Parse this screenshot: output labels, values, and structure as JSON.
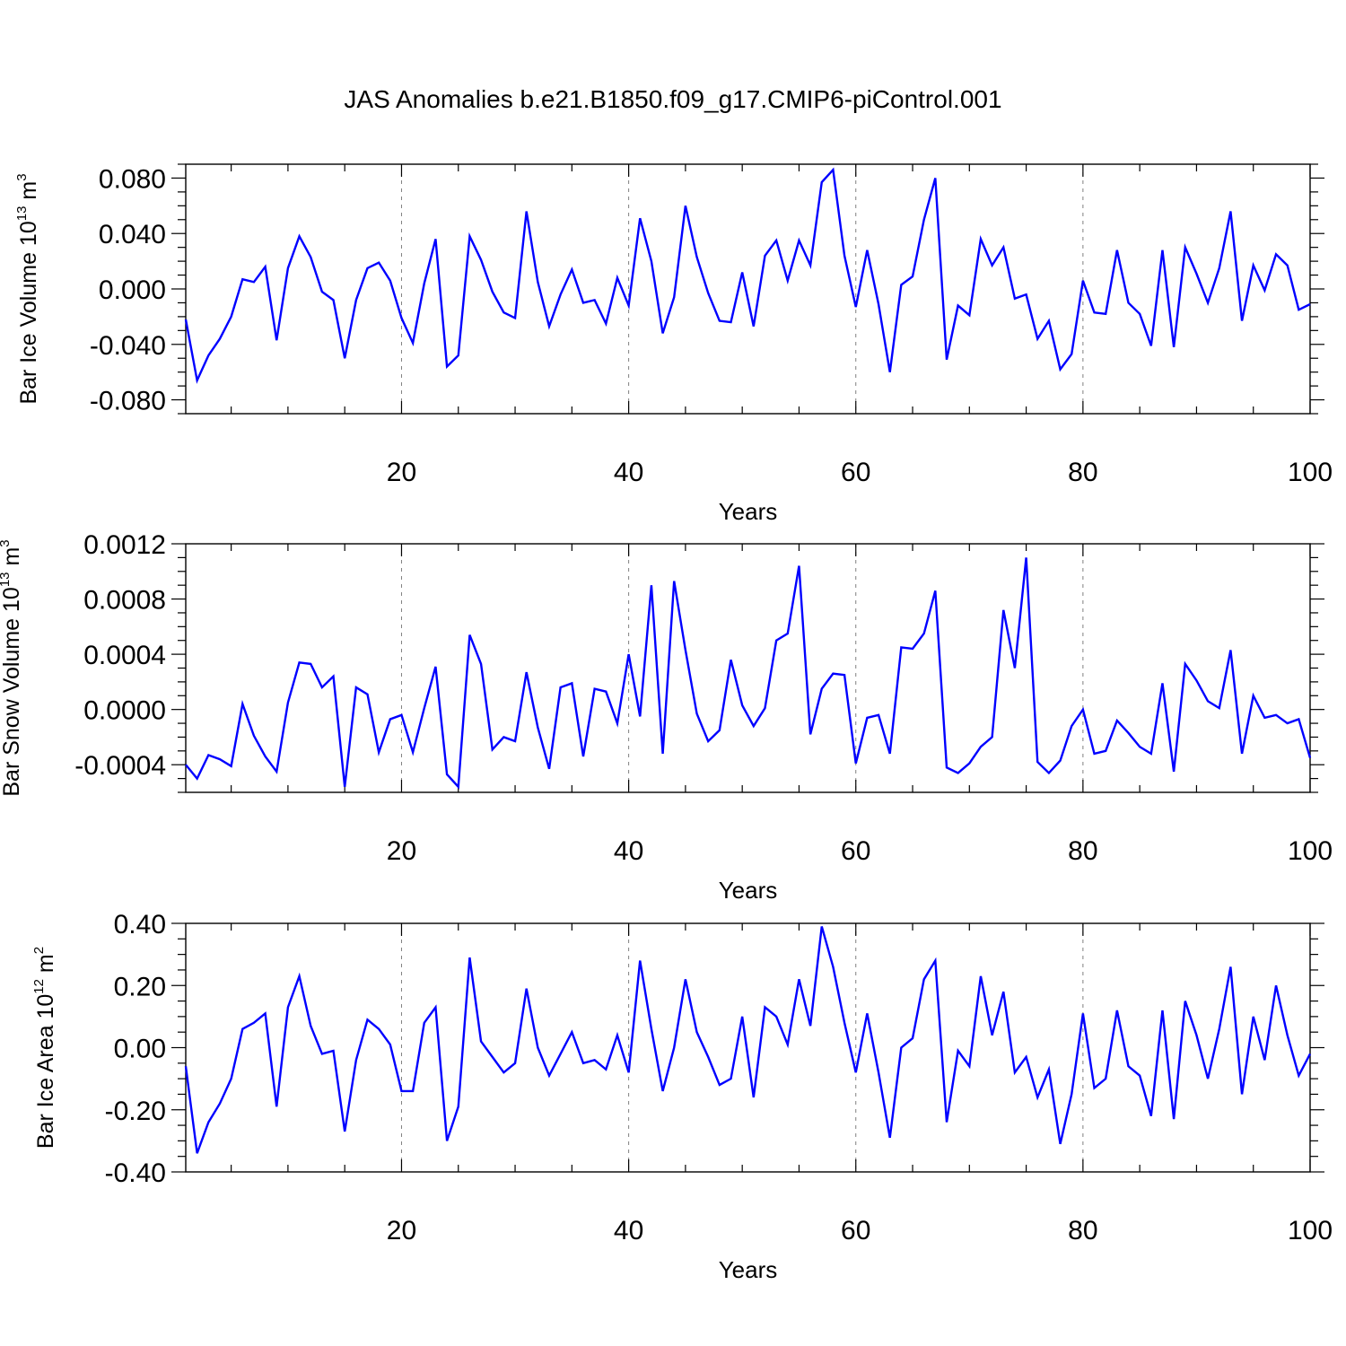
{
  "figure": {
    "title": "JAS Anomalies b.e21.B1850.f09_g17.CMIP6-piControl.001"
  },
  "colors": {
    "line": "#0000ff",
    "axis": "#000000",
    "gridline": "#808080",
    "background": "#ffffff"
  },
  "chart_data": [
    {
      "type": "line",
      "ylabel": {
        "text": "Bar Ice Volume 10",
        "sup": "13",
        "unit": " m",
        "unit_sup": "3"
      },
      "xlabel": "Years",
      "xlim": [
        1,
        100
      ],
      "ylim": [
        -0.09,
        0.09
      ],
      "xticks": [
        20,
        40,
        60,
        80,
        100
      ],
      "xtick_labels": [
        "20",
        "40",
        "60",
        "80",
        "100"
      ],
      "yticks": [
        0.08,
        0.04,
        0.0,
        -0.04,
        -0.08
      ],
      "ytick_labels": [
        "0.080",
        "0.040",
        "0.000",
        "-0.040",
        "-0.080"
      ],
      "grid": "vertical dashed at x ticks",
      "series": [
        {
          "x_start": 1,
          "values": [
            -0.022,
            -0.066,
            -0.048,
            -0.036,
            -0.02,
            0.007,
            0.005,
            0.016,
            -0.037,
            0.015,
            0.038,
            0.023,
            -0.002,
            -0.008,
            -0.05,
            -0.008,
            0.015,
            0.019,
            0.006,
            -0.021,
            -0.039,
            0.004,
            0.036,
            -0.056,
            -0.048,
            0.038,
            0.021,
            -0.002,
            -0.017,
            -0.021,
            0.056,
            0.005,
            -0.027,
            -0.004,
            0.014,
            -0.01,
            -0.008,
            -0.025,
            0.008,
            -0.012,
            0.051,
            0.02,
            -0.032,
            -0.006,
            0.06,
            0.023,
            -0.003,
            -0.023,
            -0.024,
            0.012,
            -0.027,
            0.024,
            0.035,
            0.006,
            0.035,
            0.017,
            0.077,
            0.086,
            0.024,
            -0.013,
            0.028,
            -0.011,
            -0.06,
            0.003,
            0.009,
            0.05,
            0.08,
            -0.051,
            -0.012,
            -0.019,
            0.036,
            0.017,
            0.03,
            -0.007,
            -0.004,
            -0.036,
            -0.023,
            -0.058,
            -0.047,
            0.006,
            -0.017,
            -0.018,
            0.028,
            -0.01,
            -0.018,
            -0.041,
            0.028,
            -0.042,
            0.03,
            0.011,
            -0.01,
            0.015,
            0.056,
            -0.023,
            0.017,
            -0.001,
            0.025,
            0.017,
            -0.015,
            -0.011
          ]
        }
      ]
    },
    {
      "type": "line",
      "ylabel": {
        "text": "Bar Snow Volume 10",
        "sup": "13",
        "unit": " m",
        "unit_sup": "3"
      },
      "xlabel": "Years",
      "xlim": [
        1,
        100
      ],
      "ylim": [
        -0.0006,
        0.0012
      ],
      "xticks": [
        20,
        40,
        60,
        80,
        100
      ],
      "xtick_labels": [
        "20",
        "40",
        "60",
        "80",
        "100"
      ],
      "yticks": [
        0.0012,
        0.0008,
        0.0004,
        0.0,
        -0.0004
      ],
      "ytick_labels": [
        "0.0012",
        "0.0008",
        "0.0004",
        "0.0000",
        "-0.0004"
      ],
      "grid": "vertical dashed at x ticks",
      "series": [
        {
          "x_start": 1,
          "values": [
            -0.0004,
            -0.0005,
            -0.00033,
            -0.00036,
            -0.00041,
            4e-05,
            -0.00019,
            -0.00034,
            -0.00045,
            5e-05,
            0.00034,
            0.00033,
            0.00016,
            0.00024,
            -0.00056,
            0.00016,
            0.00011,
            -0.00031,
            -7e-05,
            -4e-05,
            -0.00031,
            1e-05,
            0.00031,
            -0.00047,
            -0.00056,
            0.00054,
            0.00033,
            -0.00029,
            -0.0002,
            -0.00023,
            0.00027,
            -0.00013,
            -0.00043,
            0.00016,
            0.00019,
            -0.00034,
            0.00015,
            0.00013,
            -0.0001,
            0.0004,
            -5e-05,
            0.0009,
            -0.00032,
            0.00093,
            0.00043,
            -3e-05,
            -0.00023,
            -0.00015,
            0.00036,
            3e-05,
            -0.00012,
            1e-05,
            0.0005,
            0.00055,
            0.00104,
            -0.00018,
            0.00015,
            0.00026,
            0.00025,
            -0.00039,
            -6e-05,
            -4e-05,
            -0.00032,
            0.00045,
            0.00044,
            0.00055,
            0.00086,
            -0.00042,
            -0.00046,
            -0.00039,
            -0.00027,
            -0.0002,
            0.00072,
            0.0003,
            0.0011,
            -0.00038,
            -0.00046,
            -0.00037,
            -0.00012,
            0.0,
            -0.00032,
            -0.0003,
            -8e-05,
            -0.00017,
            -0.00027,
            -0.00032,
            0.00019,
            -0.00045,
            0.00033,
            0.00021,
            6e-05,
            1e-05,
            0.00043,
            -0.00032,
            0.0001,
            -6e-05,
            -4e-05,
            -0.0001,
            -7e-05,
            -0.00035
          ]
        }
      ]
    },
    {
      "type": "line",
      "ylabel": {
        "text": "Bar Ice Area 10",
        "sup": "12",
        "unit": " m",
        "unit_sup": "2"
      },
      "xlabel": "Years",
      "xlim": [
        1,
        100
      ],
      "ylim": [
        -0.4,
        0.4
      ],
      "xticks": [
        20,
        40,
        60,
        80,
        100
      ],
      "xtick_labels": [
        "20",
        "40",
        "60",
        "80",
        "100"
      ],
      "yticks": [
        0.4,
        0.2,
        0.0,
        -0.2,
        -0.4
      ],
      "ytick_labels": [
        "0.40",
        "0.20",
        "0.00",
        "-0.20",
        "-0.40"
      ],
      "grid": "vertical dashed at x ticks",
      "series": [
        {
          "x_start": 1,
          "values": [
            -0.06,
            -0.34,
            -0.24,
            -0.18,
            -0.1,
            0.06,
            0.08,
            0.11,
            -0.19,
            0.13,
            0.23,
            0.07,
            -0.02,
            -0.01,
            -0.27,
            -0.04,
            0.09,
            0.06,
            0.01,
            -0.14,
            -0.14,
            0.08,
            0.13,
            -0.3,
            -0.19,
            0.29,
            0.02,
            -0.03,
            -0.08,
            -0.05,
            0.19,
            0.0,
            -0.09,
            -0.02,
            0.05,
            -0.05,
            -0.04,
            -0.07,
            0.04,
            -0.08,
            0.28,
            0.06,
            -0.14,
            0.0,
            0.22,
            0.05,
            -0.03,
            -0.12,
            -0.1,
            0.1,
            -0.16,
            0.13,
            0.1,
            0.01,
            0.22,
            0.07,
            0.39,
            0.26,
            0.08,
            -0.08,
            0.11,
            -0.08,
            -0.29,
            0.0,
            0.03,
            0.22,
            0.28,
            -0.24,
            -0.01,
            -0.06,
            0.23,
            0.04,
            0.18,
            -0.08,
            -0.03,
            -0.16,
            -0.07,
            -0.31,
            -0.15,
            0.11,
            -0.13,
            -0.1,
            0.12,
            -0.06,
            -0.09,
            -0.22,
            0.12,
            -0.23,
            0.15,
            0.04,
            -0.1,
            0.06,
            0.26,
            -0.15,
            0.1,
            -0.04,
            0.2,
            0.04,
            -0.09,
            -0.02
          ]
        }
      ]
    }
  ]
}
